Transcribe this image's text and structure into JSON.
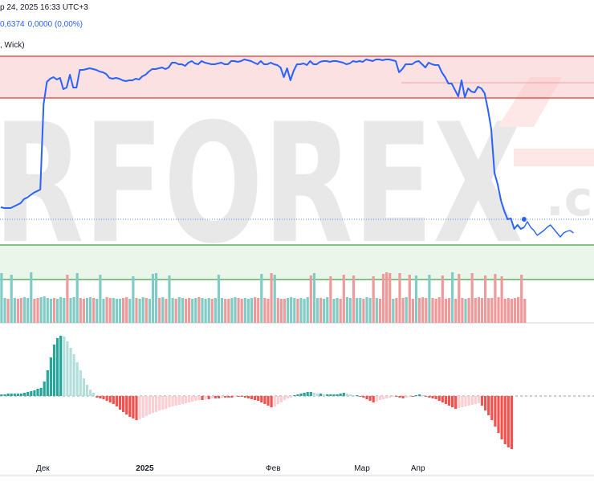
{
  "header": {
    "line1": "р 24, 2025 16:33 UTC+3",
    "value": "0,6374",
    "change": "0,0000 (0,00%)",
    "line3": ", Wick)"
  },
  "watermark": "RFOREX",
  "watermark_suffix": ".c",
  "colors": {
    "line": "#2962ff",
    "resistance": "#e53935",
    "support": "#43a047",
    "up": "#26a69a",
    "up_light": "#b2dfdb",
    "down": "#ef5350",
    "down_light": "#ffcdd2",
    "vol_up": "#80cbc4",
    "vol_down": "#ef9a9a"
  },
  "chart_data": [
    {
      "type": "line",
      "x": [
        1,
        2,
        3,
        4,
        5,
        6,
        7,
        8,
        9,
        10,
        11,
        12,
        13,
        14,
        15,
        16,
        17,
        18,
        19,
        20,
        21,
        22,
        23,
        24,
        25,
        26,
        27,
        28,
        29,
        30,
        31,
        32,
        33,
        34,
        35,
        36,
        37,
        38,
        39,
        40,
        41,
        42,
        43,
        44,
        45,
        46,
        47,
        48,
        49,
        50,
        51,
        52,
        53,
        54,
        55,
        56,
        57,
        58,
        59,
        60,
        61,
        62,
        63,
        64,
        65,
        66,
        67,
        68,
        69,
        70,
        71,
        72,
        73,
        74,
        75,
        76,
        77,
        78,
        79,
        80,
        81,
        82,
        83,
        84,
        85,
        86,
        87,
        88,
        89,
        90,
        91,
        92,
        93,
        94,
        95,
        96,
        97,
        98,
        99,
        100,
        101,
        102,
        103,
        104,
        105,
        106,
        107,
        108,
        109,
        110,
        111,
        112,
        113,
        114,
        115,
        116,
        117,
        118,
        119,
        120,
        121,
        122,
        123,
        124,
        125,
        126,
        127,
        128,
        129,
        130,
        131,
        132,
        133,
        134,
        135,
        136,
        137,
        138,
        139,
        140,
        141,
        142,
        143,
        144,
        145,
        146,
        147,
        148,
        149,
        150,
        151,
        152,
        153,
        154,
        155,
        156,
        157,
        158,
        159,
        160
      ],
      "values": [
        258,
        259,
        259,
        259,
        257,
        255,
        253,
        248,
        246,
        243,
        240,
        238,
        236,
        130,
        102,
        98,
        96,
        99,
        97,
        111,
        109,
        93,
        109,
        109,
        87,
        87,
        86,
        85,
        86,
        87,
        89,
        90,
        92,
        97,
        98,
        97,
        98,
        100,
        101,
        100,
        100,
        98,
        99,
        95,
        93,
        89,
        86,
        86,
        85,
        84,
        86,
        84,
        78,
        78,
        80,
        80,
        82,
        78,
        76,
        79,
        80,
        76,
        78,
        79,
        80,
        80,
        79,
        78,
        80,
        80,
        76,
        76,
        77,
        76,
        74,
        75,
        76,
        78,
        80,
        76,
        80,
        80,
        78,
        80,
        81,
        84,
        96,
        85,
        100,
        88,
        80,
        80,
        79,
        81,
        76,
        80,
        80,
        77,
        76,
        76,
        77,
        76,
        76,
        77,
        78,
        80,
        79,
        76,
        77,
        76,
        77,
        74,
        75,
        76,
        74,
        74,
        75,
        74,
        74,
        75,
        76,
        90,
        86,
        80,
        80,
        80,
        77,
        76,
        80,
        84,
        78,
        80,
        81,
        81,
        90,
        96,
        104,
        104,
        112,
        120,
        100,
        121,
        110,
        114,
        115,
        108,
        110,
        116,
        136,
        160,
        215,
        230,
        250,
        263,
        273,
        272,
        285,
        280,
        285,
        283
      ],
      "extend_x": [
        161,
        162,
        163,
        164,
        165,
        166,
        167,
        168,
        169,
        170,
        171,
        172,
        173,
        174,
        175
      ],
      "extend_values": [
        276,
        283,
        287,
        293,
        290,
        287,
        283,
        280,
        285,
        290,
        295,
        290,
        288,
        287,
        290
      ],
      "last_marker": 273,
      "price_line": 273,
      "resistance": [
        70,
        122
      ],
      "support": [
        305,
        348
      ],
      "ylim": [
        60,
        310
      ]
    },
    {
      "type": "bar",
      "name": "volume",
      "count": 160,
      "base_values": [
        31,
        31,
        30,
        32,
        31,
        30,
        31,
        32,
        31,
        30,
        30,
        31,
        32,
        33,
        31,
        30,
        31,
        30,
        32,
        31,
        30,
        31,
        32,
        30,
        31,
        30,
        31,
        32,
        31,
        30,
        31,
        30,
        32,
        31,
        31,
        30,
        30,
        31,
        32,
        30,
        31,
        31,
        30,
        32,
        31,
        30,
        31,
        30,
        31,
        32,
        30,
        31,
        31,
        30,
        32,
        31,
        30,
        31,
        30,
        31,
        32,
        31,
        30,
        31,
        30,
        31,
        32,
        31,
        30,
        30,
        31,
        32,
        31,
        30,
        31,
        30,
        31,
        32,
        31,
        30,
        31,
        30,
        31,
        32,
        31,
        30,
        30,
        31,
        32,
        31,
        30,
        31,
        30,
        32,
        31,
        30,
        31,
        31,
        30,
        32,
        31,
        30,
        31,
        30,
        31,
        32,
        31,
        30,
        31,
        31,
        30,
        32,
        31,
        30,
        31,
        30,
        31,
        32,
        31,
        30,
        31,
        30,
        31,
        32,
        31,
        30,
        30,
        31,
        32,
        31,
        30,
        31,
        30,
        32,
        31,
        30,
        31,
        31,
        30,
        32,
        31,
        30,
        31,
        30,
        31,
        32,
        31,
        30,
        31,
        31,
        30,
        32,
        31,
        30,
        31,
        30,
        31,
        32,
        31,
        30
      ],
      "spikes": {
        "0": 62,
        "3": 60,
        "9": 63,
        "20": 60,
        "23": 62,
        "30": 60,
        "40": 58,
        "46": 61,
        "47": 62,
        "51": 59,
        "66": 60,
        "79": 61,
        "82": 62,
        "83": 60,
        "94": 59,
        "95": 62,
        "100": 58,
        "104": 60,
        "107": 59,
        "113": 58,
        "116": 61,
        "117": 63,
        "118": 62,
        "121": 62,
        "124": 60,
        "126": 59,
        "130": 60,
        "134": 59,
        "137": 63,
        "139": 61,
        "143": 62,
        "147": 59,
        "150": 61,
        "152": 58,
        "158": 60
      },
      "direction": "up,up,down,up,up,down,down,up,up,up,down,down,up,up,up,up,down,up,up,up,down,up,up,up,down,down,up,up,down,up,up,up,down,down,up,up,up,down,down,up,up,down,up,up,down,up,up,up,down,up,down,up,up,down,up,up,down,down,up,up,down,up,up,up,down,up,up,up,down,down,up,up,down,down,up,up,up,down,down,up,down,down,down,up,down,down,down,up,up,up,down,up,up,up,down,up,up,down,up,up,down,up,up,down,down,up,up,down,up,up,down,up,up,down,up,down,down,down,down,up,down,down,down,up,down,down,up,down,down,down,up,down,down,down,down,down,down,up,down,down,down,up,down,down,down,down,down,down,down,down,down,down,down,down,down,down,down,down,down,down"
    },
    {
      "type": "bar",
      "name": "histogram",
      "values": [
        2,
        2,
        3,
        3,
        3,
        3,
        3,
        4,
        5,
        6,
        7,
        9,
        10,
        18,
        32,
        48,
        64,
        72,
        75,
        74,
        68,
        60,
        52,
        42,
        32,
        22,
        14,
        8,
        4,
        -2,
        -3,
        -4,
        -6,
        -8,
        -10,
        -13,
        -17,
        -20,
        -23,
        -26,
        -28,
        -30,
        -29,
        -27,
        -25,
        -23,
        -21,
        -20,
        -18,
        -17,
        -16,
        -14,
        -13,
        -12,
        -11,
        -10,
        -9,
        -8,
        -7,
        -6,
        -5,
        -5,
        -4,
        -4,
        -3,
        -3,
        -3,
        -2,
        -2,
        -2,
        -2,
        -1,
        -1,
        -1,
        -2,
        -3,
        -4,
        -5,
        -6,
        -8,
        -10,
        -12,
        -14,
        -13,
        -10,
        -8,
        -5,
        -3,
        -2,
        1,
        2,
        3,
        4,
        5,
        5,
        4,
        3,
        3,
        2,
        2,
        2,
        2,
        2,
        3,
        4,
        3,
        2,
        1,
        1,
        -1,
        -2,
        -4,
        -6,
        -8,
        -7,
        -5,
        -4,
        -3,
        -2,
        -1,
        -1,
        -2,
        -3,
        -2,
        -1,
        -1,
        1,
        2,
        1,
        -1,
        -2,
        -3,
        -4,
        -6,
        -8,
        -10,
        -12,
        -14,
        -16,
        -15,
        -14,
        -13,
        -12,
        -11,
        -10,
        -9,
        -12,
        -18,
        -24,
        -30,
        -38,
        -46,
        -54,
        -60,
        -64,
        -66
      ]
    },
    {
      "type": "axis",
      "tick_labels": [
        "Дек",
        "2025",
        "Фев",
        "Мар",
        "Апр"
      ],
      "tick_index": [
        13,
        44,
        83,
        110,
        127
      ]
    }
  ]
}
